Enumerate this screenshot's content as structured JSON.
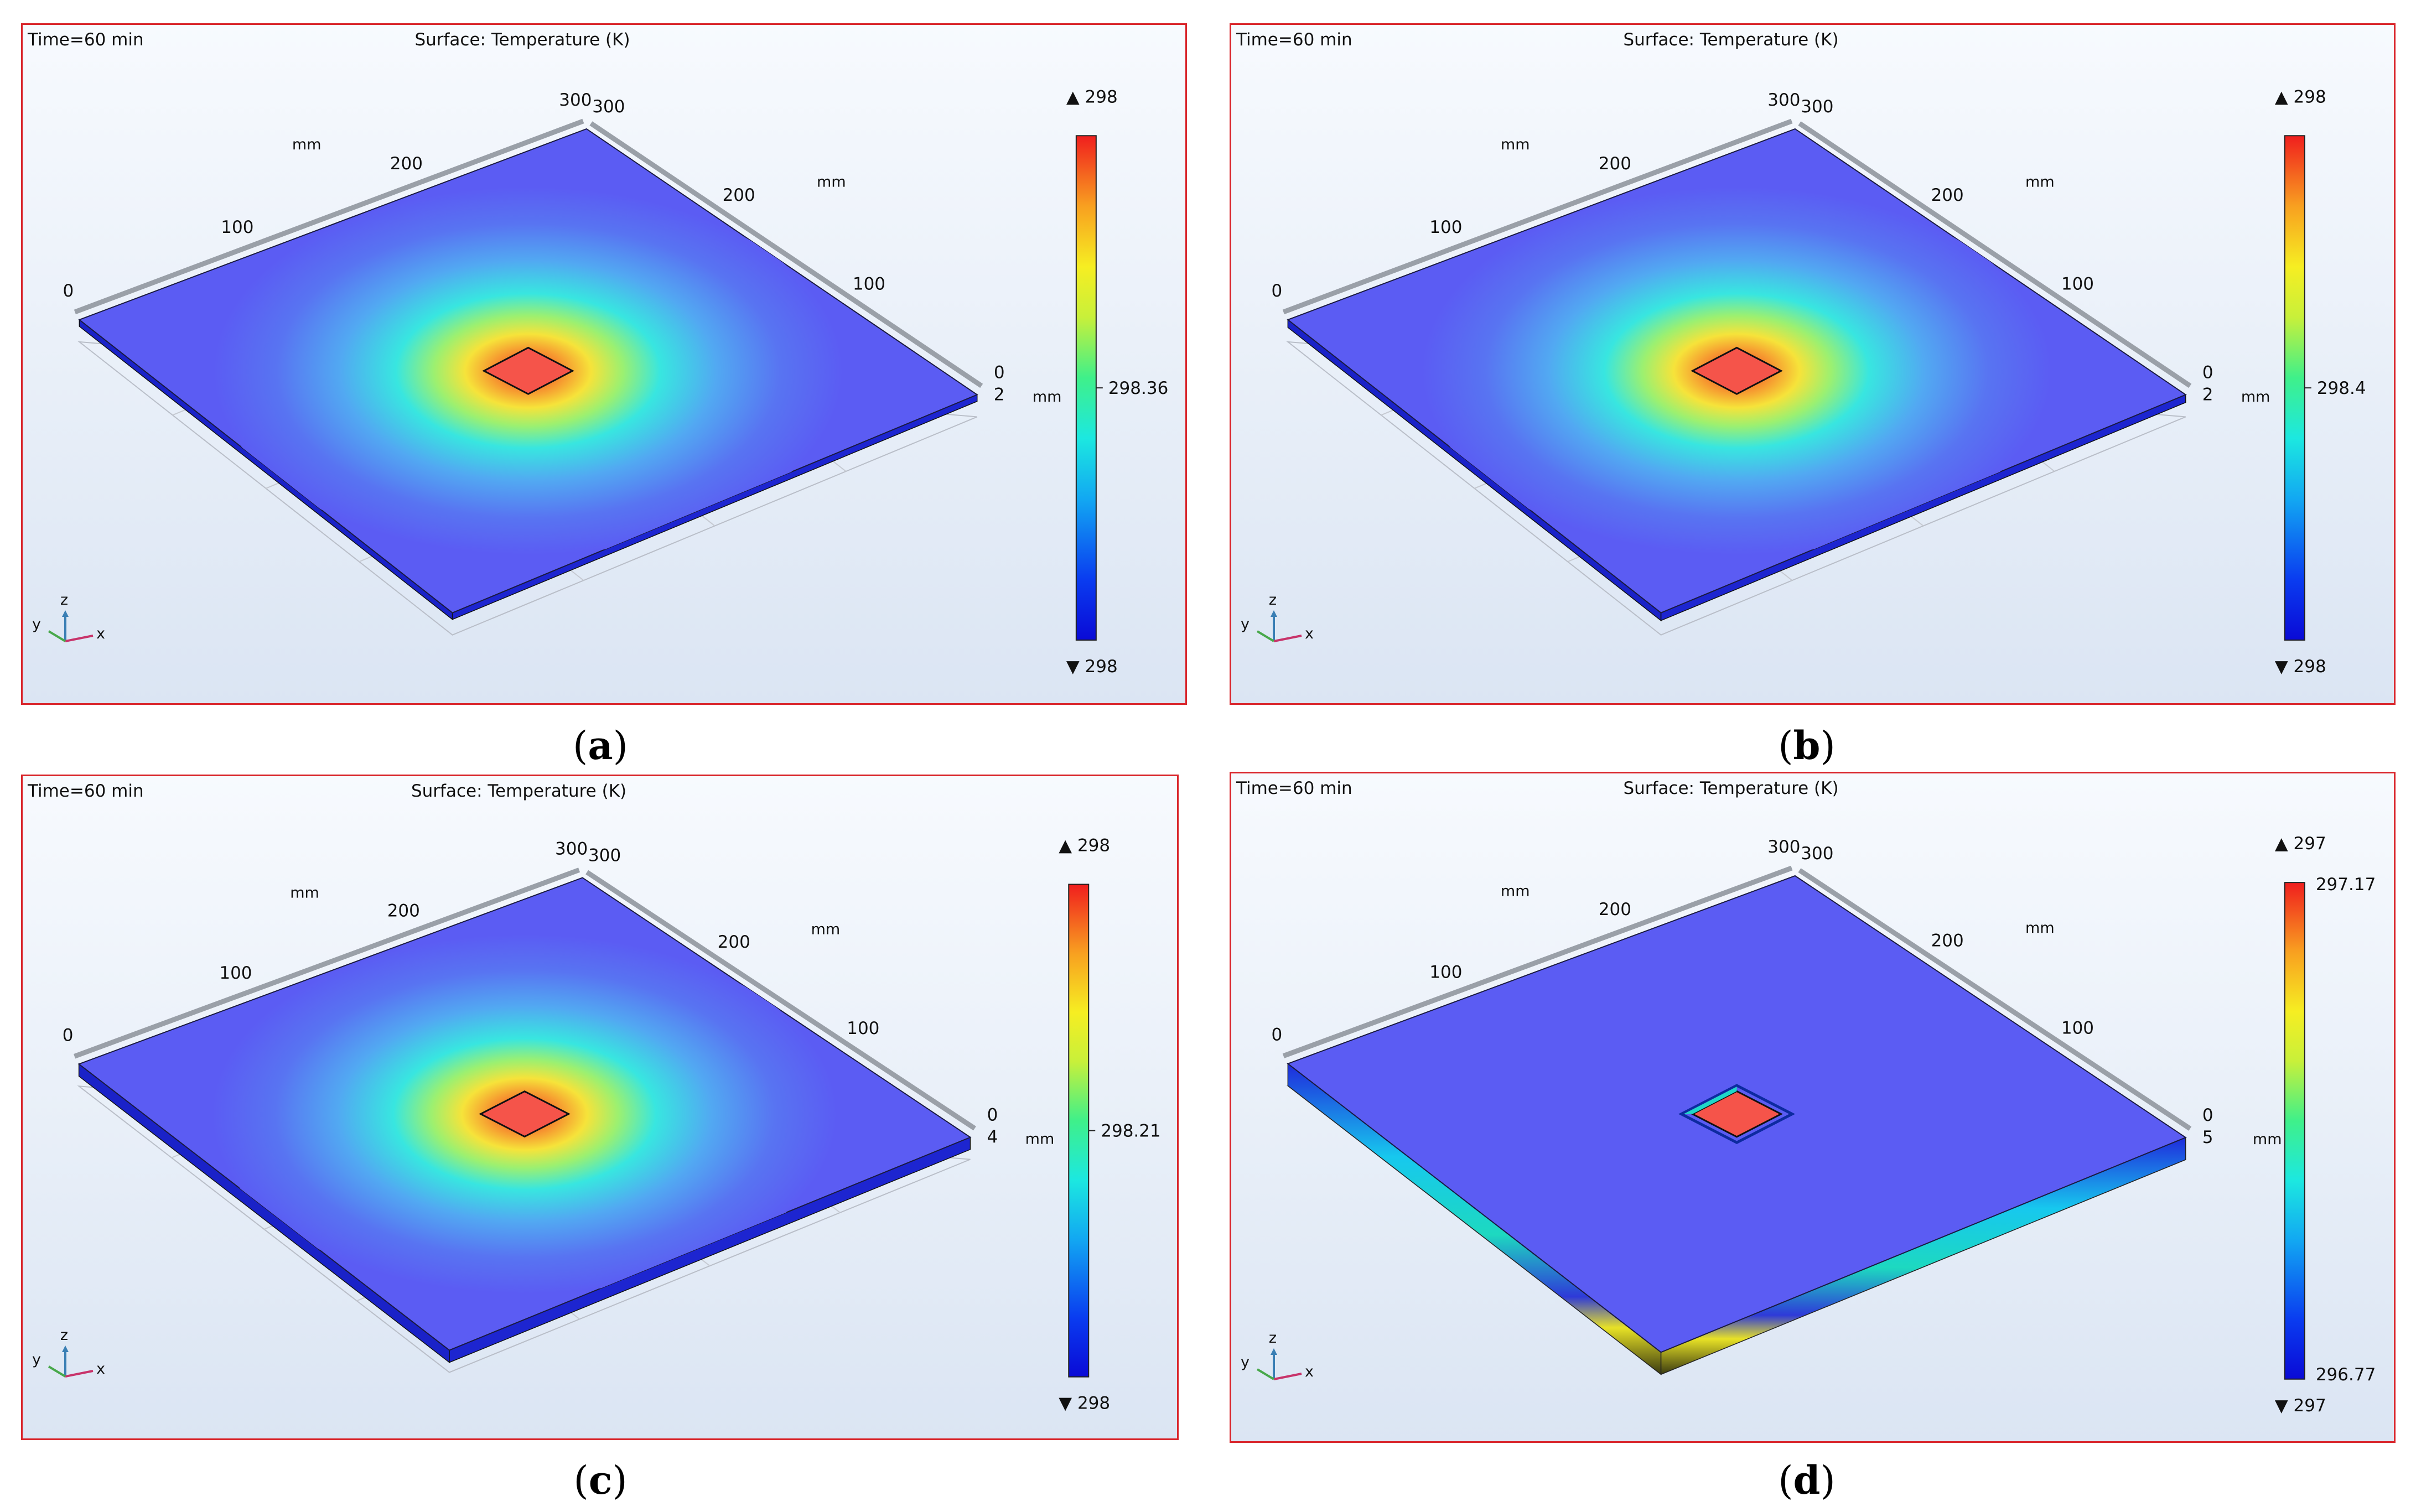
{
  "colors": {
    "frame": "#d9262c",
    "panel_bg_top": "#f6f9fd",
    "panel_bg_bottom": "#dfe8f4",
    "plate_blue": "#5b5cf3",
    "hot_red": "#f5544a"
  },
  "panels": [
    {
      "id": "a",
      "time": "Time=60 min",
      "title": "Surface: Temperature (K)",
      "axis_x_ticks": [
        "0",
        "100",
        "200",
        "300"
      ],
      "axis_y_ticks": [
        "300",
        "200",
        "100",
        "0"
      ],
      "unit_x": "mm",
      "unit_y": "mm",
      "unit_z": "mm",
      "thickness_tick": "2",
      "legend_max": "298",
      "legend_min": "298",
      "legend_mid": "298.36",
      "legend_top": "",
      "legend_bottom": "",
      "axes_icon": {
        "y": "y",
        "z": "z",
        "x": "x"
      },
      "caption_letter": "a"
    },
    {
      "id": "b",
      "time": "Time=60 min",
      "title": "Surface: Temperature (K)",
      "axis_x_ticks": [
        "0",
        "100",
        "200",
        "300"
      ],
      "axis_y_ticks": [
        "300",
        "200",
        "100",
        "0"
      ],
      "unit_x": "mm",
      "unit_y": "mm",
      "unit_z": "mm",
      "thickness_tick": "2",
      "legend_max": "298",
      "legend_min": "298",
      "legend_mid": "298.4",
      "legend_top": "",
      "legend_bottom": "",
      "axes_icon": {
        "y": "y",
        "z": "z",
        "x": "x"
      },
      "caption_letter": "b"
    },
    {
      "id": "c",
      "time": "Time=60 min",
      "title": "Surface: Temperature (K)",
      "axis_x_ticks": [
        "0",
        "100",
        "200",
        "300"
      ],
      "axis_y_ticks": [
        "300",
        "200",
        "100",
        "0"
      ],
      "unit_x": "mm",
      "unit_y": "mm",
      "unit_z": "mm",
      "thickness_tick": "4",
      "legend_max": "298",
      "legend_min": "298",
      "legend_mid": "298.21",
      "legend_top": "",
      "legend_bottom": "",
      "axes_icon": {
        "y": "y",
        "z": "z",
        "x": "x"
      },
      "caption_letter": "c"
    },
    {
      "id": "d",
      "time": "Time=60 min",
      "title": "Surface: Temperature (K)",
      "axis_x_ticks": [
        "0",
        "100",
        "200",
        "300"
      ],
      "axis_y_ticks": [
        "300",
        "200",
        "100",
        "0"
      ],
      "unit_x": "mm",
      "unit_y": "mm",
      "unit_z": "mm",
      "thickness_tick": "5",
      "legend_max": "297",
      "legend_min": "297",
      "legend_mid": "",
      "legend_top": "297.17",
      "legend_bottom": "296.77",
      "axes_icon": {
        "y": "y",
        "z": "z",
        "x": "x"
      },
      "caption_letter": "d"
    }
  ]
}
